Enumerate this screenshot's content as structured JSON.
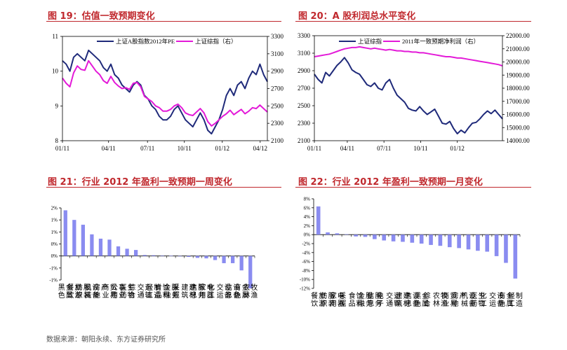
{
  "colors": {
    "title_red": "#c0282d",
    "navy": "#1f2a7a",
    "magenta": "#e31ad8",
    "bar_blue": "#8a8cf0"
  },
  "panels": {
    "p1": {
      "title": "图 19：估值一致预期变化"
    },
    "p2": {
      "title": "图 20：A 股利润总水平变化"
    },
    "p3": {
      "title": "图 21：行业 2012 年盈利一致预期一周变化"
    },
    "p4": {
      "title": "图 22：行业 2012 年盈利一致预期一月变化"
    }
  },
  "source": "数据来源：朝阳永续、东方证券研究所",
  "chart_data": [
    {
      "id": "c1",
      "type": "line",
      "x_ticks": [
        "01/11",
        "04/11",
        "07/11",
        "10/11",
        "01/12",
        "04/12"
      ],
      "ylim_left": [
        8,
        11
      ],
      "yticks_left": [
        "8",
        "9",
        "10",
        "11"
      ],
      "ylim_right": [
        2100,
        3300
      ],
      "yticks_right": [
        "2100",
        "2300",
        "2500",
        "2700",
        "2900",
        "3100",
        "3300"
      ],
      "series": [
        {
          "name": "上证A股指数2012年PE",
          "axis": "left",
          "color": "#1f2a7a",
          "values": [
            10.3,
            10.2,
            10.0,
            10.4,
            10.5,
            10.4,
            10.3,
            10.6,
            10.5,
            10.4,
            10.3,
            10.1,
            10.0,
            10.2,
            9.9,
            9.8,
            9.6,
            9.5,
            9.4,
            9.6,
            9.7,
            9.6,
            9.3,
            9.2,
            9.0,
            8.9,
            8.7,
            8.6,
            8.6,
            8.7,
            8.9,
            9.0,
            8.8,
            8.6,
            8.5,
            8.4,
            8.6,
            8.8,
            8.6,
            8.3,
            8.2,
            8.4,
            8.6,
            8.9,
            9.3,
            9.5,
            9.3,
            9.6,
            9.7,
            9.5,
            9.8,
            10.0,
            9.9,
            10.2,
            9.9,
            9.7
          ]
        },
        {
          "name": "上证综指（右）",
          "axis": "right",
          "color": "#e31ad8",
          "values": [
            2820,
            2760,
            2720,
            2880,
            2960,
            2920,
            2910,
            3020,
            2960,
            2900,
            2860,
            2790,
            2760,
            2840,
            2770,
            2730,
            2700,
            2710,
            2690,
            2760,
            2770,
            2720,
            2610,
            2580,
            2550,
            2500,
            2480,
            2440,
            2440,
            2460,
            2500,
            2520,
            2480,
            2420,
            2400,
            2390,
            2430,
            2470,
            2420,
            2320,
            2270,
            2300,
            2340,
            2380,
            2410,
            2450,
            2400,
            2430,
            2460,
            2410,
            2440,
            2480,
            2470,
            2510,
            2470,
            2430
          ]
        }
      ]
    },
    {
      "id": "c2",
      "type": "line",
      "x_ticks": [
        "01/11",
        "04/11",
        "07/11",
        "10/11",
        "01/12"
      ],
      "ylim_left": [
        2100,
        3300
      ],
      "yticks_left": [
        "2100",
        "2300",
        "2500",
        "2700",
        "2900",
        "3100",
        "3300"
      ],
      "ylim_right": [
        14000,
        22000
      ],
      "yticks_right": [
        "14000.00",
        "15000.00",
        "16000.00",
        "17000.00",
        "18000.00",
        "19000.00",
        "20000.00",
        "21000.00",
        "22000.00"
      ],
      "series": [
        {
          "name": "上证综指",
          "axis": "left",
          "color": "#1f2a7a",
          "values": [
            2860,
            2800,
            2760,
            2880,
            2840,
            2900,
            2960,
            3000,
            3050,
            2990,
            2910,
            2880,
            2860,
            2800,
            2740,
            2720,
            2760,
            2700,
            2680,
            2760,
            2800,
            2700,
            2620,
            2580,
            2540,
            2470,
            2450,
            2440,
            2490,
            2440,
            2400,
            2430,
            2460,
            2380,
            2300,
            2290,
            2320,
            2240,
            2180,
            2220,
            2190,
            2250,
            2300,
            2310,
            2350,
            2400,
            2440,
            2410,
            2450,
            2400,
            2350
          ]
        },
        {
          "name": "2011年一致预期净利润（右）",
          "axis": "right",
          "color": "#e31ad8",
          "values": [
            20400,
            20450,
            20500,
            20550,
            20600,
            20700,
            20800,
            20900,
            21000,
            21050,
            21100,
            21100,
            21150,
            21100,
            21050,
            21000,
            21050,
            21000,
            20950,
            20900,
            20950,
            20900,
            20850,
            20850,
            20800,
            20800,
            20750,
            20750,
            20700,
            20700,
            20650,
            20600,
            20550,
            20500,
            20450,
            20400,
            20400,
            20350,
            20300,
            20300,
            20250,
            20200,
            20150,
            20100,
            20050,
            20000,
            19950,
            19900,
            19850,
            19800,
            19700
          ]
        }
      ]
    },
    {
      "id": "c3",
      "type": "bar",
      "ylim": [
        -1,
        2
      ],
      "yticks": [
        "2%",
        "1%",
        "1%",
        "0%",
        "0%",
        "-1%",
        "-1%"
      ],
      "categories": [
        "黑色金属",
        "餐饮旅游",
        "纺织服装",
        "机械设备",
        "房地产",
        "商业贸易",
        "公用事业",
        "医药生物",
        "综合",
        "交通运输",
        "轻工制造",
        "食品饮料",
        "金融服务",
        "采掘",
        "建筑建材",
        "信息服务",
        "家用电器",
        "化工",
        "交运设备",
        "信息设备",
        "有色金属",
        "农林牧渔"
      ],
      "values": [
        1.9,
        1.5,
        1.3,
        0.9,
        0.72,
        0.68,
        0.4,
        0.3,
        0.25,
        0.04,
        0.03,
        0.02,
        0.01,
        -0.02,
        -0.04,
        -0.08,
        -0.1,
        -0.17,
        -0.3,
        -0.3,
        -0.6,
        -1.35
      ]
    },
    {
      "id": "c4",
      "type": "bar",
      "ylim": [
        -12,
        8
      ],
      "yticks": [
        "8%",
        "6%",
        "4%",
        "2%",
        "0%",
        "-2%",
        "-4%",
        "-6%",
        "-8%",
        "-10%",
        "-12%"
      ],
      "categories": [
        "餐饮旅游",
        "纺织服装",
        "家用电器",
        "采掘",
        "食品饮料",
        "金融服务",
        "信息服务",
        "电子",
        "交通运输",
        "建筑建材",
        "信息设备",
        "黑色金属",
        "综合",
        "农林牧渔",
        "商业贸易",
        "房地产",
        "机械设备",
        "医药生物",
        "化工",
        "交运设备",
        "有色金属",
        "轻工制造"
      ],
      "values": [
        6.3,
        0.5,
        0.3,
        0.1,
        -0.4,
        -0.5,
        -1.0,
        -1.3,
        -1.5,
        -1.6,
        -1.8,
        -2.0,
        -2.3,
        -2.5,
        -2.8,
        -3.0,
        -3.3,
        -3.6,
        -3.8,
        -4.8,
        -6.3,
        -9.8
      ]
    }
  ]
}
